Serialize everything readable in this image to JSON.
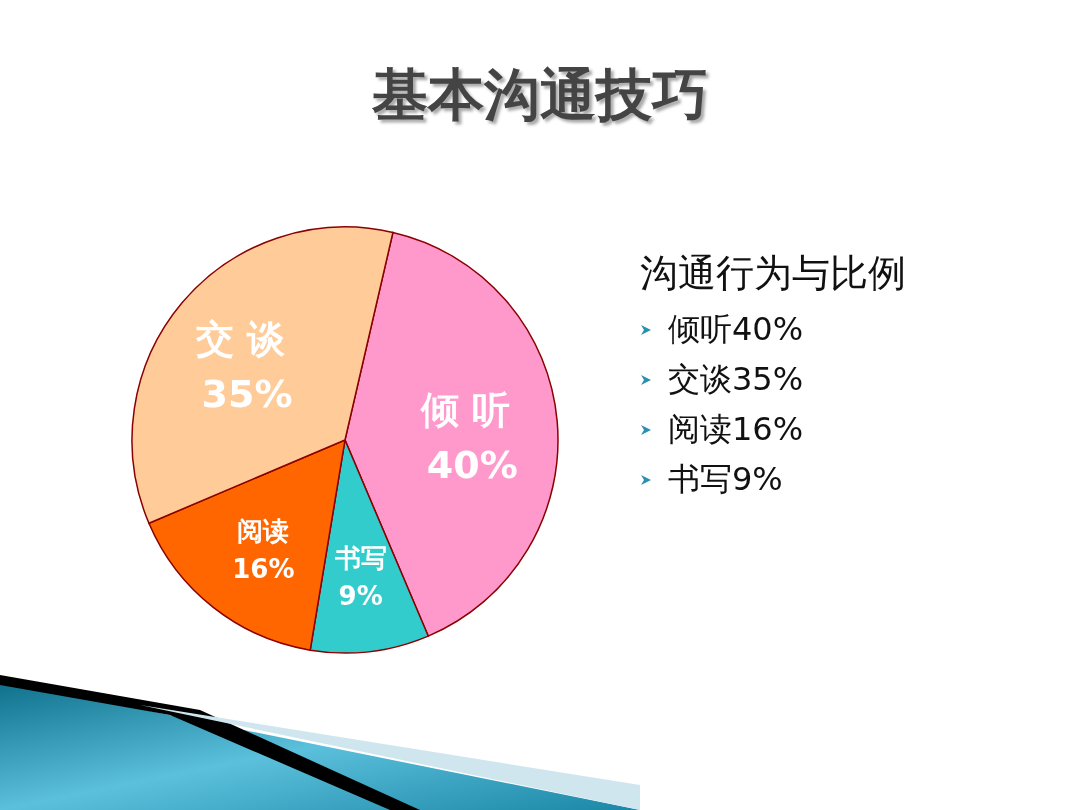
{
  "chart_data": {
    "type": "pie",
    "title": "基本沟通技巧",
    "categories": [
      "倾听",
      "书写",
      "阅读",
      "交谈"
    ],
    "values": [
      40,
      9,
      16,
      35
    ],
    "colors": [
      "#ff99cc",
      "#33cccc",
      "#ff6600",
      "#ffcc99"
    ],
    "value_labels": [
      "40%",
      "9%",
      "16%",
      "35%"
    ],
    "annotations": [
      "沟通行为与比例",
      "倾听40%",
      "交谈35%",
      "阅读16%",
      "书写9%"
    ]
  }
}
